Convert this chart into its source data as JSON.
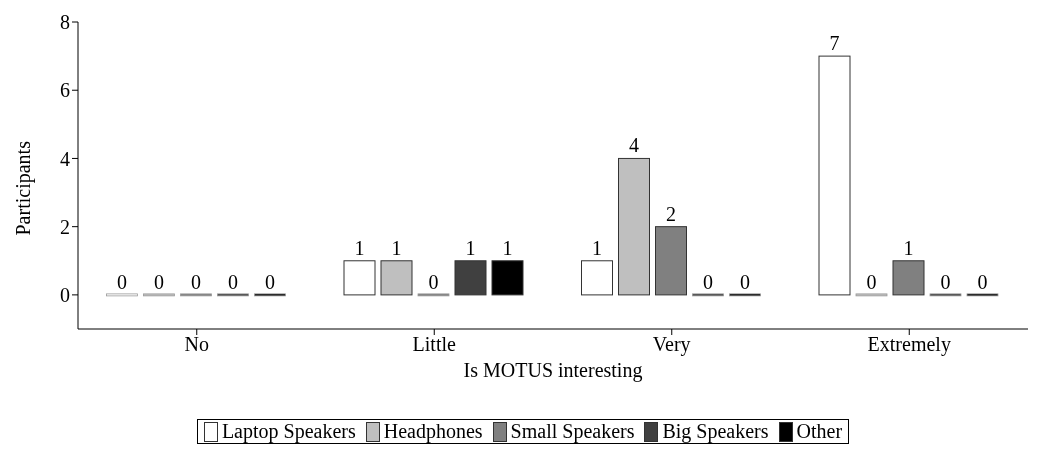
{
  "chart_data": {
    "type": "bar",
    "xlabel": "Is MOTUS interesting",
    "ylabel": "Participants",
    "categories": [
      "No",
      "Little",
      "Very",
      "Extremely"
    ],
    "series": [
      {
        "name": "Laptop Speakers",
        "color": "#ffffff",
        "values": [
          0,
          1,
          1,
          7
        ]
      },
      {
        "name": "Headphones",
        "color": "#bfbfbf",
        "values": [
          0,
          1,
          4,
          0
        ]
      },
      {
        "name": "Small Speakers",
        "color": "#808080",
        "values": [
          0,
          0,
          2,
          1
        ]
      },
      {
        "name": "Big Speakers",
        "color": "#404040",
        "values": [
          0,
          1,
          0,
          0
        ]
      },
      {
        "name": "Other",
        "color": "#000000",
        "values": [
          0,
          1,
          0,
          0
        ]
      }
    ],
    "ylim": [
      -1,
      8
    ],
    "yticks": [
      0,
      2,
      4,
      6,
      8
    ],
    "grid": false,
    "data_labels": true,
    "legend": "bottom"
  }
}
